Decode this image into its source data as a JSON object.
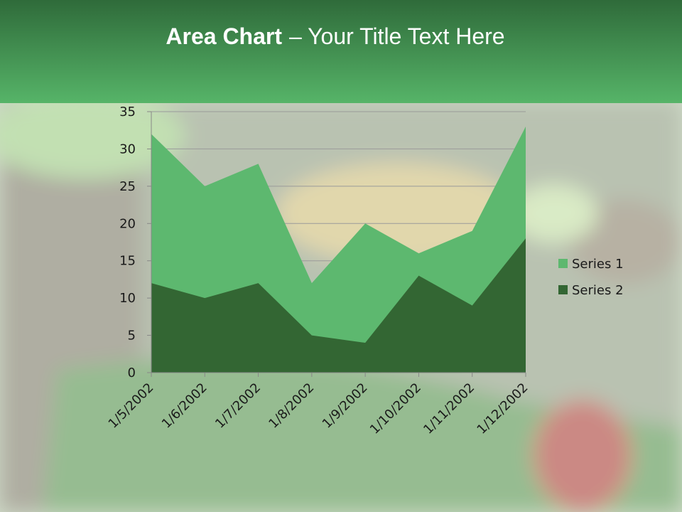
{
  "chart_data": {
    "type": "area",
    "title": [
      "Area Chart",
      "– Your Title Text Here"
    ],
    "categories": [
      "1/5/2002",
      "1/6/2002",
      "1/7/2002",
      "1/8/2002",
      "1/9/2002",
      "1/10/2002",
      "1/11/2002",
      "1/12/2002"
    ],
    "series": [
      {
        "name": "Series 1",
        "color": "#5db86f",
        "values": [
          32,
          25,
          28,
          12,
          20,
          16,
          19,
          33
        ]
      },
      {
        "name": "Series 2",
        "color": "#336633",
        "values": [
          12,
          10,
          12,
          5,
          4,
          13,
          9,
          18
        ]
      }
    ],
    "ylim": [
      0,
      35
    ],
    "yticks": [
      0,
      5,
      10,
      15,
      20,
      25,
      30,
      35
    ],
    "grid": true,
    "legend": "right"
  }
}
